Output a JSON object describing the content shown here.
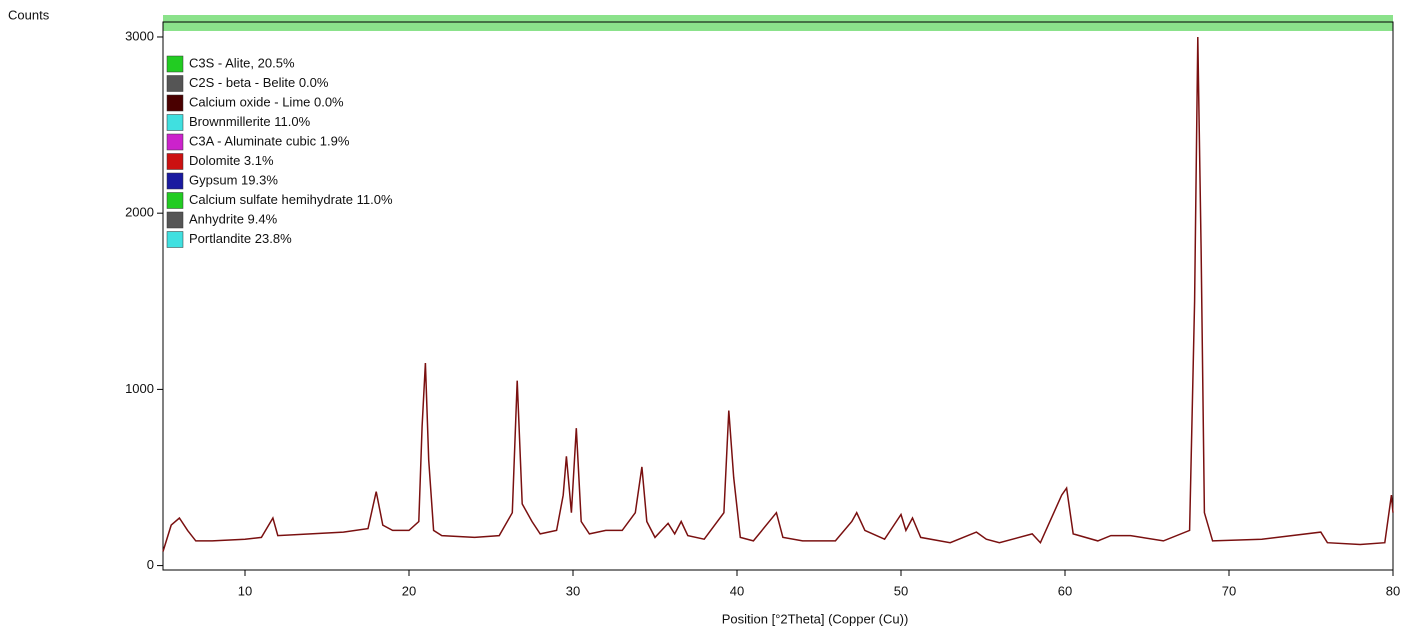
{
  "chart_data": {
    "type": "line",
    "y_axis_label": "Counts",
    "x_axis_label": "Position [°2Theta] (Copper (Cu))",
    "xlim": [
      5,
      80
    ],
    "ylim": [
      -25,
      3085
    ],
    "xticks": [
      10,
      20,
      30,
      40,
      50,
      60,
      70,
      80
    ],
    "yticks": [
      0,
      1000,
      2000,
      3000
    ],
    "color": "#7a1010",
    "legend": [
      {
        "label": "C3S - Alite, 20.5%",
        "color": "#22cc22"
      },
      {
        "label": "C2S - beta - Belite 0.0%",
        "color": "#555555"
      },
      {
        "label": "Calcium oxide - Lime 0.0%",
        "color": "#4a0000"
      },
      {
        "label": "Brownmillerite 11.0%",
        "color": "#40e0e0"
      },
      {
        "label": "C3A - Aluminate cubic 1.9%",
        "color": "#cc22cc"
      },
      {
        "label": "Dolomite 3.1%",
        "color": "#cc1111"
      },
      {
        "label": "Gypsum 19.3%",
        "color": "#1a1aa0"
      },
      {
        "label": "Calcium sulfate hemihydrate 11.0%",
        "color": "#22cc22"
      },
      {
        "label": "Anhydrite 9.4%",
        "color": "#555555"
      },
      {
        "label": "Portlandite 23.8%",
        "color": "#40e0e0"
      }
    ],
    "x": [
      5,
      5.5,
      6,
      6.5,
      7,
      8,
      10,
      11,
      11.7,
      12,
      14,
      16,
      17.5,
      18,
      18.4,
      19,
      20,
      20.6,
      20.8,
      21.0,
      21.2,
      21.5,
      22,
      24,
      25.5,
      26.3,
      26.6,
      26.9,
      27.5,
      28,
      29,
      29.4,
      29.6,
      29.9,
      30.2,
      30.5,
      31,
      32,
      33,
      33.8,
      34.2,
      34.5,
      35,
      35.8,
      36.2,
      36.6,
      37,
      38,
      39.2,
      39.5,
      39.8,
      40.2,
      41,
      42.4,
      42.8,
      44,
      46,
      47,
      47.3,
      47.8,
      49,
      50,
      50.3,
      50.7,
      51.2,
      53,
      54.6,
      55.2,
      56,
      58,
      58.5,
      59.8,
      60.1,
      60.5,
      62,
      62.8,
      64,
      66,
      67.6,
      67.9,
      68.1,
      68.3,
      68.5,
      69,
      72,
      75.6,
      76,
      78,
      79.5,
      79.9,
      80
    ],
    "values": [
      80,
      230,
      270,
      200,
      140,
      140,
      150,
      160,
      270,
      170,
      180,
      190,
      210,
      420,
      230,
      200,
      200,
      250,
      790,
      1150,
      600,
      200,
      170,
      160,
      170,
      300,
      1050,
      350,
      250,
      180,
      200,
      400,
      620,
      300,
      780,
      250,
      180,
      200,
      200,
      300,
      560,
      250,
      160,
      240,
      180,
      250,
      170,
      150,
      300,
      880,
      500,
      160,
      140,
      300,
      160,
      140,
      140,
      250,
      300,
      200,
      150,
      290,
      200,
      270,
      160,
      130,
      190,
      150,
      130,
      180,
      130,
      400,
      440,
      180,
      140,
      170,
      170,
      140,
      200,
      1500,
      3000,
      1800,
      300,
      140,
      150,
      190,
      130,
      120,
      130,
      400,
      300
    ]
  }
}
